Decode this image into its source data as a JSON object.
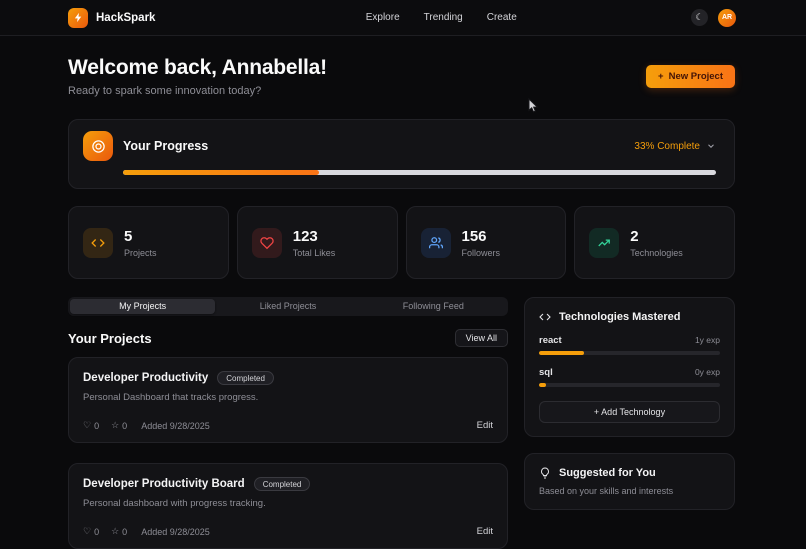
{
  "header": {
    "brand": "HackSpark",
    "nav": [
      {
        "label": "Explore"
      },
      {
        "label": "Trending"
      },
      {
        "label": "Create"
      }
    ],
    "avatar": "AR"
  },
  "welcome": {
    "title": "Welcome back, Annabella!",
    "subtitle": "Ready to spark some innovation today?",
    "new_project": {
      "plus": "+",
      "label": "New Project"
    }
  },
  "progress": {
    "title": "Your Progress",
    "status": "33% Complete",
    "percent": 33
  },
  "stats": [
    {
      "value": "5",
      "label": "Projects",
      "icon": "code-icon",
      "color": "#f59e0b"
    },
    {
      "value": "123",
      "label": "Total Likes",
      "icon": "heart-icon",
      "color": "#ef4444"
    },
    {
      "value": "156",
      "label": "Followers",
      "icon": "users-icon",
      "color": "#60a5fa"
    },
    {
      "value": "2",
      "label": "Technologies",
      "icon": "trend-icon",
      "color": "#34d399"
    }
  ],
  "tabs": [
    {
      "label": "My Projects"
    },
    {
      "label": "Liked Projects"
    },
    {
      "label": "Following Feed"
    }
  ],
  "projects_section": {
    "title": "Your Projects",
    "view_all_label": "View All",
    "projects": [
      {
        "title": "Developer Productivity",
        "badge": "Completed",
        "description": "Personal Dashboard that tracks progress.",
        "likes": "0",
        "stars": "0",
        "added": "Added 9/28/2025",
        "edit_label": "Edit"
      },
      {
        "title": "Developer Productivity Board",
        "badge": "Completed",
        "description": "Personal dashboard with progress tracking.",
        "likes": "0",
        "stars": "0",
        "added": "Added 9/28/2025",
        "edit_label": "Edit"
      }
    ]
  },
  "technologies": {
    "title": "Technologies Mastered",
    "items": [
      {
        "name": "react",
        "exp": "1y exp",
        "percent": 25
      },
      {
        "name": "sql",
        "exp": "0y exp",
        "percent": 4
      }
    ],
    "add_label": "+ Add Technology"
  },
  "suggested": {
    "title": "Suggested for You",
    "subtitle": "Based on your skills and interests"
  }
}
